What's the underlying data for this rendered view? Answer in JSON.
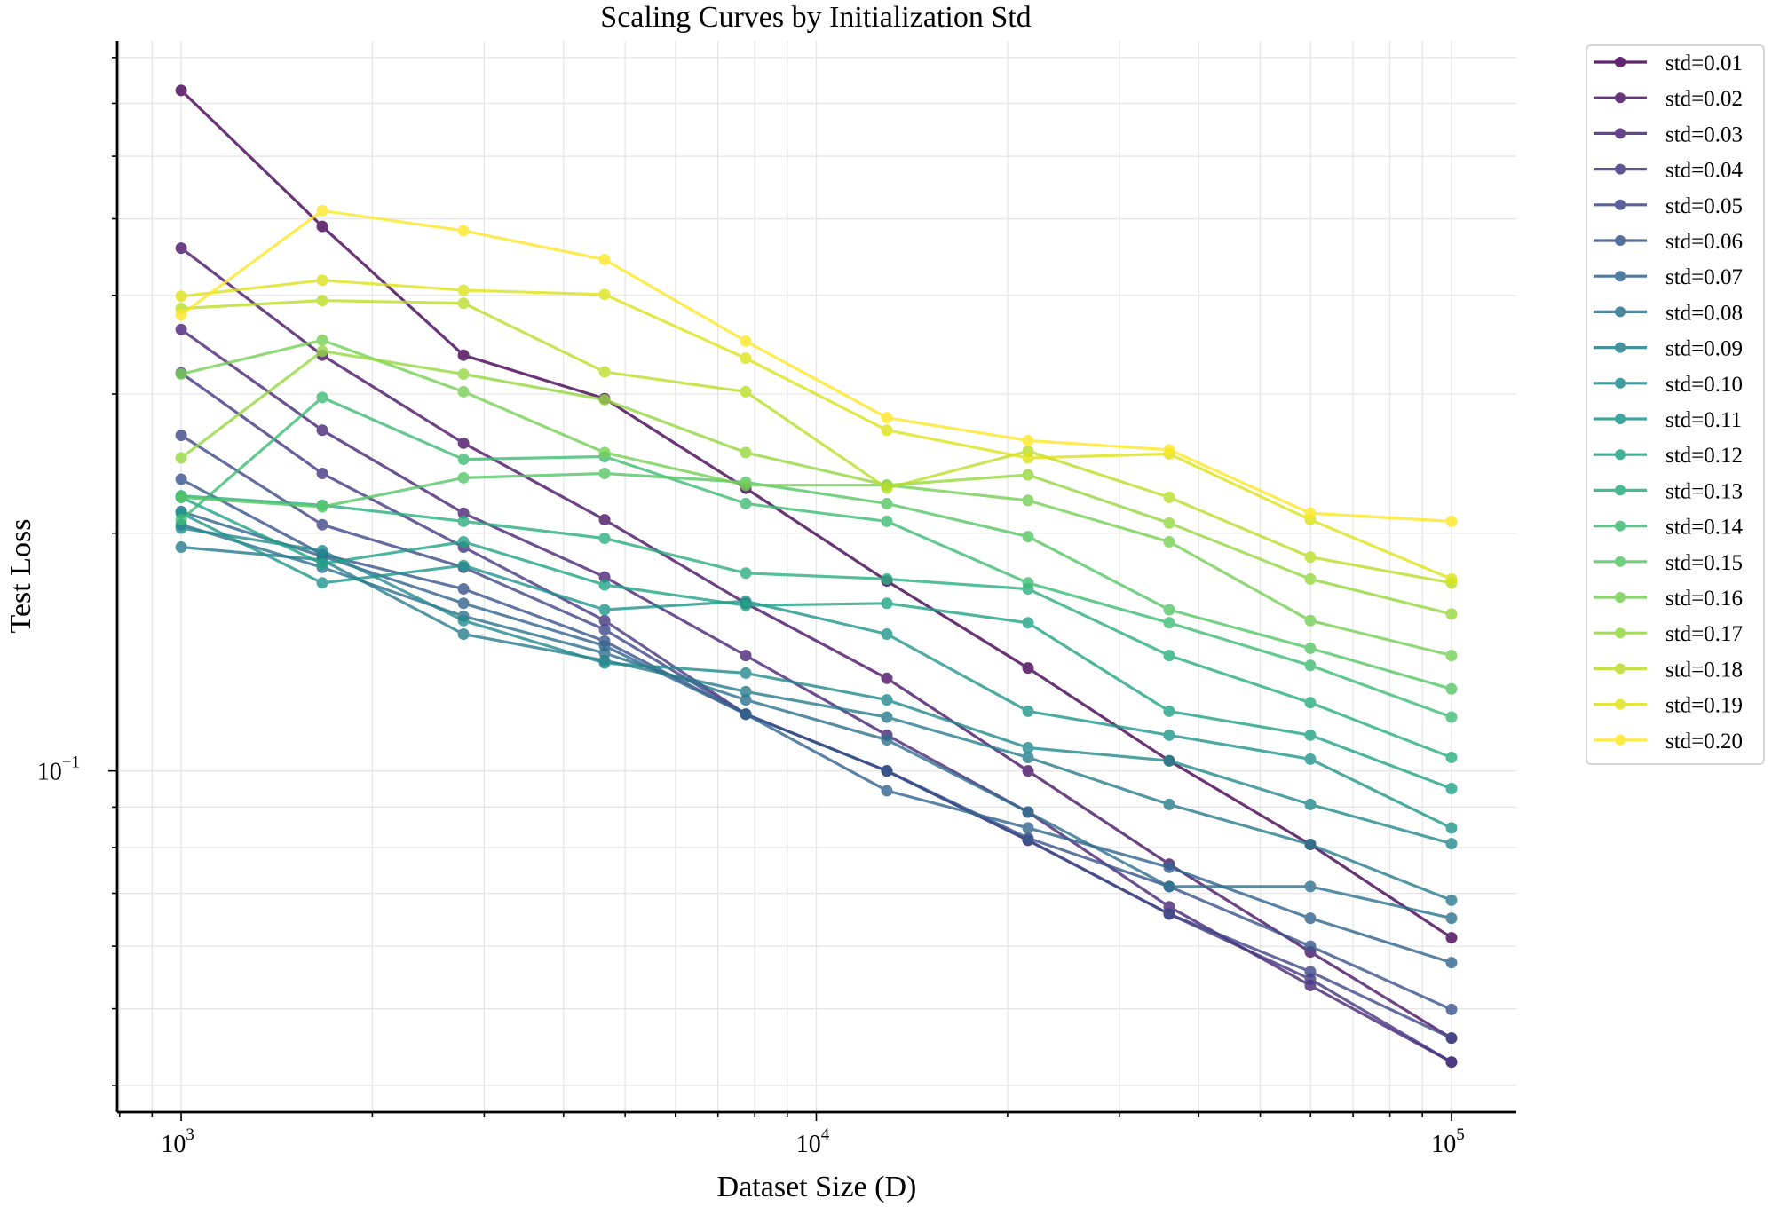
{
  "chart_data": {
    "type": "line",
    "title": "Scaling Curves by Initialization Std",
    "xlabel": "Dataset Size (D)",
    "ylabel": "Test Loss",
    "xscale": "log",
    "yscale": "log",
    "xlim": [
      793,
      126500
    ],
    "ylim": [
      0.037,
      0.84
    ],
    "x_major_ticks": [
      1000,
      10000,
      100000
    ],
    "x_tick_labels": [
      {
        "base": "10",
        "exp": "3"
      },
      {
        "base": "10",
        "exp": "4"
      },
      {
        "base": "10",
        "exp": "5"
      }
    ],
    "y_major_ticks": [
      0.1
    ],
    "y_tick_labels": [
      {
        "base": "10",
        "exp": "−1"
      }
    ],
    "y_minor_ticks": [
      0.04,
      0.05,
      0.06,
      0.07,
      0.08,
      0.09,
      0.2,
      0.3,
      0.4,
      0.5,
      0.6,
      0.7,
      0.8
    ],
    "grid": true,
    "legend_position": "outside-top-right",
    "marker": "circle",
    "colormap": "viridis",
    "x": [
      1000,
      1668,
      2783,
      4642,
      7743,
      12915,
      21544,
      35938,
      59948,
      100000
    ],
    "series": [
      {
        "name": "std=0.01",
        "color": "#440154",
        "values": [
          0.727,
          0.489,
          0.336,
          0.296,
          0.228,
          0.174,
          0.135,
          0.103,
          0.0807,
          0.0615
        ]
      },
      {
        "name": "std=0.02",
        "color": "#481467",
        "values": [
          0.459,
          0.336,
          0.26,
          0.208,
          0.163,
          0.131,
          0.1,
          0.0762,
          0.059,
          0.0459
        ]
      },
      {
        "name": "std=0.03",
        "color": "#482576",
        "values": [
          0.362,
          0.27,
          0.212,
          0.176,
          0.14,
          0.111,
          0.0887,
          0.0673,
          0.0535,
          0.0428
        ]
      },
      {
        "name": "std=0.04",
        "color": "#453781",
        "values": [
          0.319,
          0.238,
          0.192,
          0.155,
          0.118,
          0.1,
          0.0817,
          0.0659,
          0.0545,
          0.0428
        ]
      },
      {
        "name": "std=0.05",
        "color": "#3f4788",
        "values": [
          0.266,
          0.205,
          0.181,
          0.151,
          0.118,
          0.1,
          0.0817,
          0.0659,
          0.0557,
          0.0459
        ]
      },
      {
        "name": "std=0.06",
        "color": "#39558c",
        "values": [
          0.234,
          0.188,
          0.17,
          0.146,
          0.118,
          0.1,
          0.0822,
          0.0714,
          0.06,
          0.0499
        ]
      },
      {
        "name": "std=0.07",
        "color": "#32648e",
        "values": [
          0.213,
          0.187,
          0.163,
          0.144,
          0.118,
          0.0944,
          0.0847,
          0.0755,
          0.0651,
          0.0572
        ]
      },
      {
        "name": "std=0.08",
        "color": "#2d718e",
        "values": [
          0.205,
          0.181,
          0.157,
          0.141,
          0.123,
          0.1095,
          0.0887,
          0.0714,
          0.0714,
          0.0651
        ]
      },
      {
        "name": "std=0.09",
        "color": "#287d8e",
        "values": [
          0.192,
          0.185,
          0.149,
          0.138,
          0.126,
          0.117,
          0.104,
          0.0907,
          0.0807,
          0.0686
        ]
      },
      {
        "name": "std=0.10",
        "color": "#238a8d",
        "values": [
          0.203,
          0.19,
          0.155,
          0.137,
          0.133,
          0.123,
          0.107,
          0.103,
          0.0907,
          0.0809
        ]
      },
      {
        "name": "std=0.11",
        "color": "#1f968b",
        "values": [
          0.212,
          0.173,
          0.182,
          0.16,
          0.164,
          0.149,
          0.119,
          0.111,
          0.1035,
          0.0847
        ]
      },
      {
        "name": "std=0.12",
        "color": "#20a386",
        "values": [
          0.222,
          0.183,
          0.195,
          0.172,
          0.162,
          0.163,
          0.154,
          0.119,
          0.111,
          0.095
        ]
      },
      {
        "name": "std=0.13",
        "color": "#29af7f",
        "values": [
          0.223,
          0.217,
          0.207,
          0.197,
          0.178,
          0.175,
          0.17,
          0.14,
          0.122,
          0.104
        ]
      },
      {
        "name": "std=0.14",
        "color": "#3dbc74",
        "values": [
          0.208,
          0.297,
          0.248,
          0.25,
          0.218,
          0.207,
          0.173,
          0.154,
          0.136,
          0.117
        ]
      },
      {
        "name": "std=0.15",
        "color": "#56c667",
        "values": [
          0.222,
          0.216,
          0.235,
          0.238,
          0.232,
          0.218,
          0.198,
          0.16,
          0.143,
          0.127
        ]
      },
      {
        "name": "std=0.16",
        "color": "#75d054",
        "values": [
          0.318,
          0.351,
          0.302,
          0.253,
          0.23,
          0.23,
          0.22,
          0.195,
          0.155,
          0.14
        ]
      },
      {
        "name": "std=0.17",
        "color": "#95d840",
        "values": [
          0.249,
          0.34,
          0.318,
          0.295,
          0.253,
          0.23,
          0.237,
          0.206,
          0.175,
          0.158
        ]
      },
      {
        "name": "std=0.18",
        "color": "#bade28",
        "values": [
          0.385,
          0.394,
          0.391,
          0.32,
          0.302,
          0.228,
          0.254,
          0.222,
          0.1865,
          0.173
        ]
      },
      {
        "name": "std=0.19",
        "color": "#dde318",
        "values": [
          0.399,
          0.418,
          0.406,
          0.401,
          0.333,
          0.27,
          0.249,
          0.252,
          0.208,
          0.175
        ]
      },
      {
        "name": "std=0.20",
        "color": "#fde725",
        "values": [
          0.378,
          0.512,
          0.483,
          0.444,
          0.35,
          0.28,
          0.262,
          0.255,
          0.212,
          0.207
        ]
      }
    ]
  }
}
